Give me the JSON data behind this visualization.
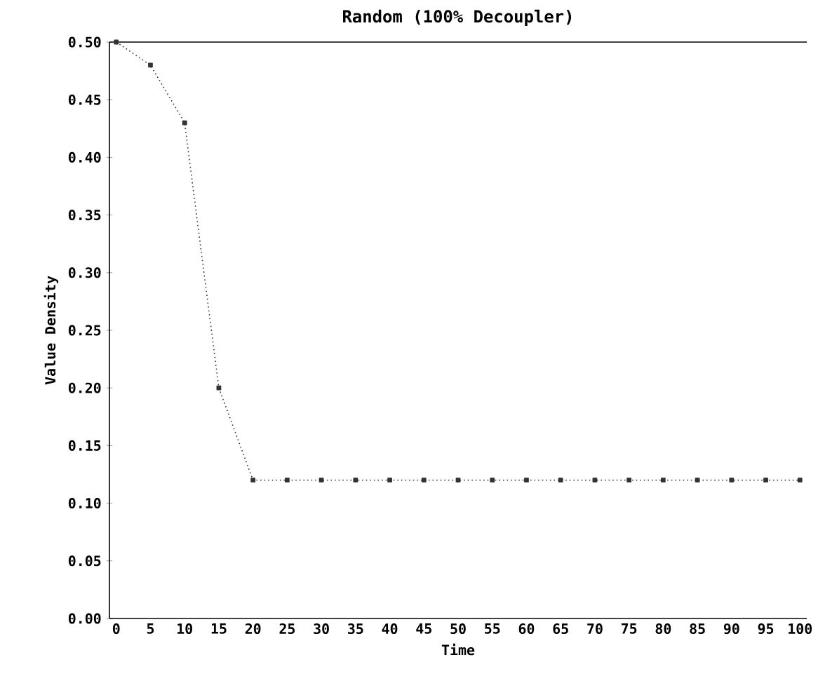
{
  "chart_data": {
    "type": "line",
    "title": "Random (100% Decoupler)",
    "xlabel": "Time",
    "ylabel": "Value Density",
    "x": [
      0,
      5,
      10,
      15,
      20,
      25,
      30,
      35,
      40,
      45,
      50,
      55,
      60,
      65,
      70,
      75,
      80,
      85,
      90,
      95,
      100
    ],
    "series": [
      {
        "color": "#333333",
        "values": [
          0.5,
          0.48,
          0.43,
          0.2,
          0.12,
          0.12,
          0.12,
          0.12,
          0.12,
          0.12,
          0.12,
          0.12,
          0.12,
          0.12,
          0.12,
          0.12,
          0.12,
          0.12,
          0.12,
          0.12,
          0.12
        ]
      }
    ],
    "xlim": [
      -1,
      101
    ],
    "ylim": [
      0,
      0.5
    ],
    "xticks": [
      0,
      5,
      10,
      15,
      20,
      25,
      30,
      35,
      40,
      45,
      50,
      55,
      60,
      65,
      70,
      75,
      80,
      85,
      90,
      95,
      100
    ],
    "yticks": [
      {
        "value": 0,
        "label": "0.00"
      },
      {
        "value": 0.05,
        "label": "0.05"
      },
      {
        "value": 0.1,
        "label": "0.10"
      },
      {
        "value": 0.15,
        "label": "0.15"
      },
      {
        "value": 0.2,
        "label": "0.20"
      },
      {
        "value": 0.25,
        "label": "0.25"
      },
      {
        "value": 0.3,
        "label": "0.30"
      },
      {
        "value": 0.35,
        "label": "0.35"
      },
      {
        "value": 0.4,
        "label": "0.40"
      },
      {
        "value": 0.45,
        "label": "0.45"
      },
      {
        "value": 0.5,
        "label": "0.50"
      }
    ],
    "grid": false,
    "legend": false,
    "marker": "square",
    "line_style": "dotted"
  }
}
